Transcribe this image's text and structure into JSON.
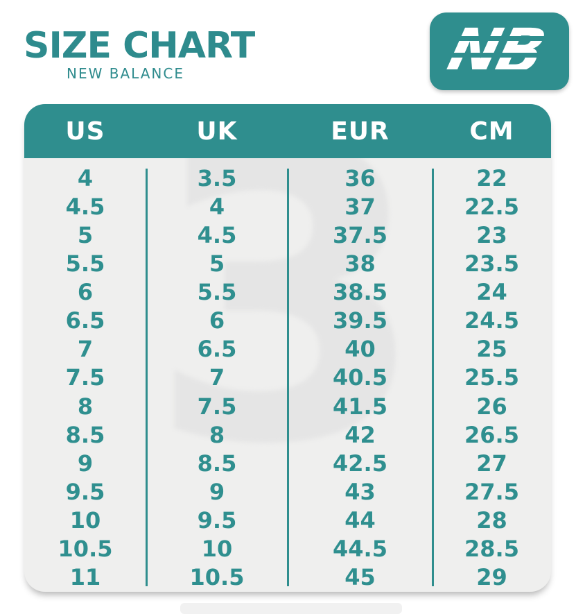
{
  "page": {
    "title": "SIZE CHART",
    "subtitle": "NEW BALANCE"
  },
  "logo": {
    "monogram": "NB"
  },
  "watermark": {
    "glyph": "3"
  },
  "colors": {
    "teal": "#2f8e8e",
    "table_background": "#efefee",
    "header_text": "#ffffff",
    "body_text": "#2f8f8f",
    "watermark_gray": "#e5e5e5"
  },
  "chart_data": {
    "type": "table",
    "title": "SIZE CHART",
    "subtitle": "NEW BALANCE",
    "columns": [
      "US",
      "UK",
      "EUR",
      "CM"
    ],
    "rows": [
      [
        "4",
        "3.5",
        "36",
        "22"
      ],
      [
        "4.5",
        "4",
        "37",
        "22.5"
      ],
      [
        "5",
        "4.5",
        "37.5",
        "23"
      ],
      [
        "5.5",
        "5",
        "38",
        "23.5"
      ],
      [
        "6",
        "5.5",
        "38.5",
        "24"
      ],
      [
        "6.5",
        "6",
        "39.5",
        "24.5"
      ],
      [
        "7",
        "6.5",
        "40",
        "25"
      ],
      [
        "7.5",
        "7",
        "40.5",
        "25.5"
      ],
      [
        "8",
        "7.5",
        "41.5",
        "26"
      ],
      [
        "8.5",
        "8",
        "42",
        "26.5"
      ],
      [
        "9",
        "8.5",
        "42.5",
        "27"
      ],
      [
        "9.5",
        "9",
        "43",
        "27.5"
      ],
      [
        "10",
        "9.5",
        "44",
        "28"
      ],
      [
        "10.5",
        "10",
        "44.5",
        "28.5"
      ],
      [
        "11",
        "10.5",
        "45",
        "29"
      ]
    ]
  }
}
